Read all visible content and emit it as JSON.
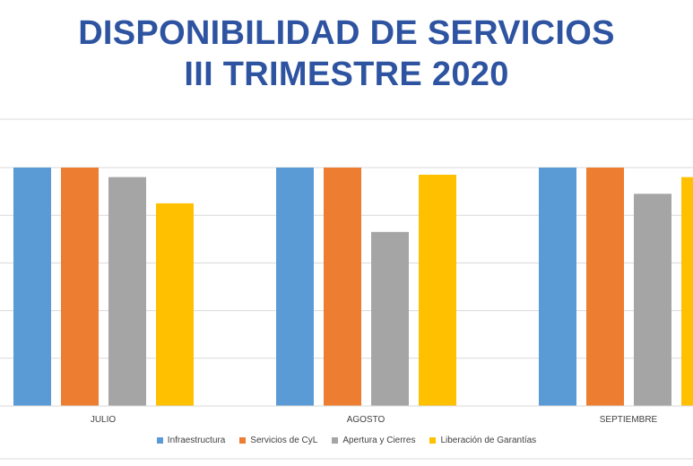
{
  "title_line1": "DISPONIBILIDAD DE SERVICIOS",
  "title_line2": "III TRIMESTRE 2020",
  "chart_data": {
    "type": "bar",
    "categories": [
      "JULIO",
      "AGOSTO",
      "SEPTIEMBRE"
    ],
    "series": [
      {
        "name": "Infraestructura",
        "color": "#5b9bd5",
        "values": [
          100,
          100,
          100
        ]
      },
      {
        "name": "Servicios de CyL",
        "color": "#ed7d31",
        "values": [
          100,
          100,
          100
        ]
      },
      {
        "name": "Apertura y Cierres",
        "color": "#a5a5a5",
        "values": [
          96,
          73,
          89
        ]
      },
      {
        "name": "Liberación de Garantías",
        "color": "#ffc000",
        "values": [
          85,
          97,
          96
        ]
      }
    ],
    "ylim": [
      0,
      100
    ],
    "grid": true,
    "legend": "bottom"
  }
}
